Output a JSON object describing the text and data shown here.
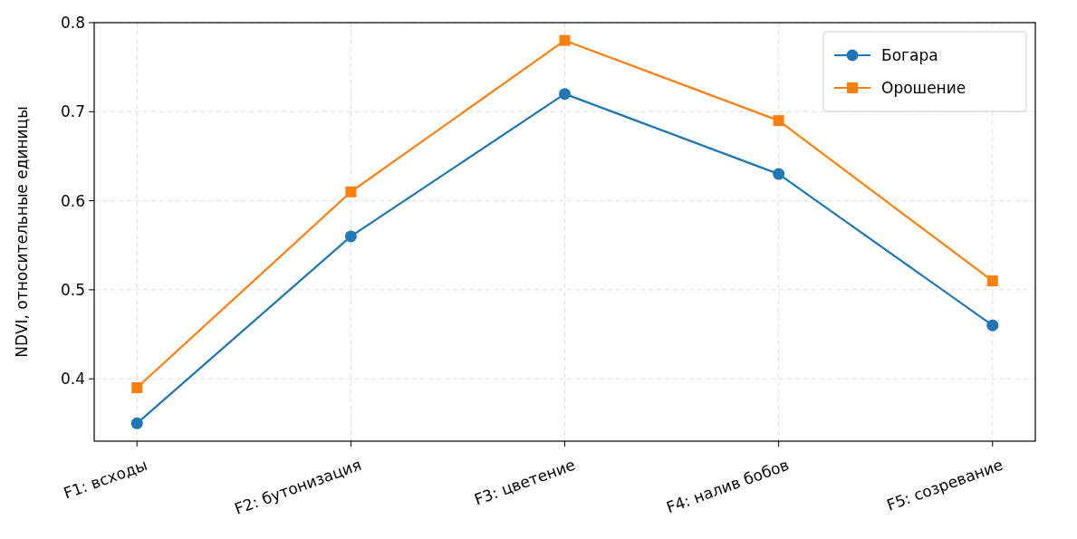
{
  "chart_data": {
    "type": "line",
    "ylabel": "NDVI, относительные единицы",
    "categories": [
      "F1: всходы",
      "F2: бутонизация",
      "F3: цветение",
      "F4: налив бобов",
      "F5: созревание"
    ],
    "series": [
      {
        "name": "Богара",
        "color": "#1f77b4",
        "marker": "circle",
        "values": [
          0.35,
          0.56,
          0.72,
          0.63,
          0.46
        ]
      },
      {
        "name": "Орошение",
        "color": "#ff7f0e",
        "marker": "square",
        "values": [
          0.39,
          0.61,
          0.78,
          0.69,
          0.51
        ]
      }
    ],
    "ylim": [
      0.33,
      0.8
    ],
    "yticks": [
      {
        "value": 0.4,
        "label": "0.4"
      },
      {
        "value": 0.5,
        "label": "0.5"
      },
      {
        "value": 0.6,
        "label": "0.6"
      },
      {
        "value": 0.7,
        "label": "0.7"
      },
      {
        "value": 0.8,
        "label": "0.8"
      }
    ],
    "grid": true,
    "legend": "top right",
    "line_style": "solid"
  }
}
